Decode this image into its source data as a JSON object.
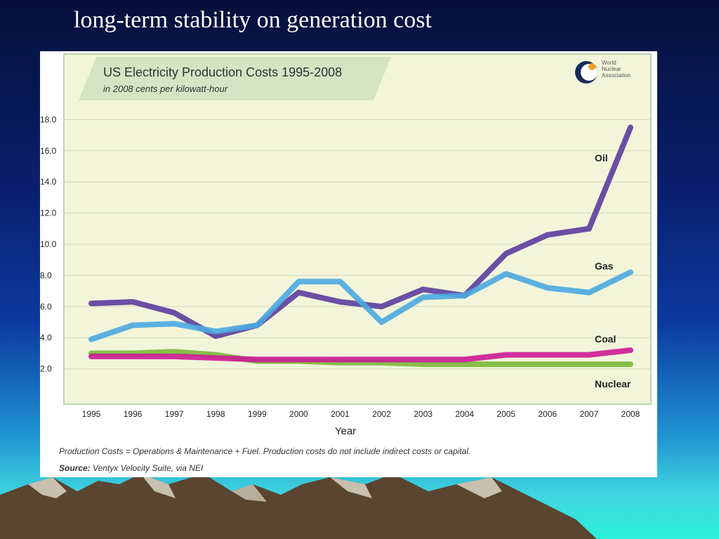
{
  "slide": {
    "title": "long-term stability on generation cost"
  },
  "chart_data": {
    "type": "line",
    "title": "US Electricity Production Costs 1995-2008",
    "subtitle": "in 2008 cents per kilowatt-hour",
    "xlabel": "Year",
    "ylabel": "",
    "ylim": [
      0,
      18
    ],
    "yticks": [
      "2.0",
      "4.0",
      "6.0",
      "8.0",
      "10.0",
      "12.0",
      "14.0",
      "16.0",
      "18.0"
    ],
    "ytick_values": [
      2,
      4,
      6,
      8,
      10,
      12,
      14,
      16,
      18
    ],
    "categories": [
      "1995",
      "1996",
      "1997",
      "1998",
      "1999",
      "2000",
      "2001",
      "2002",
      "2003",
      "2004",
      "2005",
      "2006",
      "2007",
      "2008"
    ],
    "grid": true,
    "series": [
      {
        "name": "Oil",
        "color": "#5b3d9e",
        "values": [
          6.2,
          6.3,
          5.6,
          4.1,
          4.8,
          6.9,
          6.3,
          6.0,
          7.1,
          6.7,
          9.4,
          10.6,
          11.0,
          17.5
        ]
      },
      {
        "name": "Gas",
        "color": "#4aa8e0",
        "values": [
          3.9,
          4.8,
          4.9,
          4.4,
          4.8,
          7.6,
          7.6,
          5.0,
          6.6,
          6.7,
          8.1,
          7.2,
          6.9,
          8.2
        ]
      },
      {
        "name": "Coal",
        "color": "#cc1a96",
        "values": [
          2.8,
          2.8,
          2.8,
          2.7,
          2.6,
          2.6,
          2.6,
          2.6,
          2.6,
          2.6,
          2.9,
          2.9,
          2.9,
          3.2
        ]
      },
      {
        "name": "Nuclear",
        "color": "#7ab83a",
        "values": [
          3.0,
          3.0,
          3.1,
          2.9,
          2.5,
          2.5,
          2.4,
          2.4,
          2.3,
          2.3,
          2.3,
          2.3,
          2.3,
          2.3
        ]
      }
    ],
    "annotations": {
      "footnote": "Production Costs = Operations & Maintenance + Fuel. Production costs do not include indirect costs or capital.",
      "source_label": "Source:",
      "source_text": " Ventyx Velocity Suite, via NEI"
    }
  },
  "logo": {
    "line1": "World",
    "line2": "Nuclear",
    "line3": "Association"
  }
}
